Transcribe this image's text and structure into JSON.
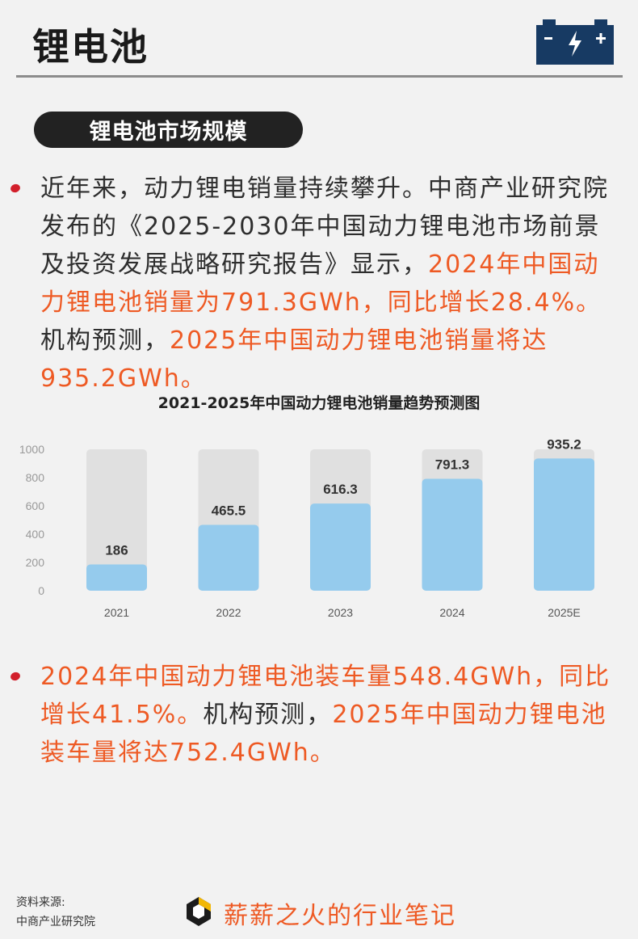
{
  "header": {
    "title": "锂电池",
    "icon": "battery-icon"
  },
  "section": {
    "title": "锂电池市场规模"
  },
  "paragraph1": {
    "t1": "近年来，动力锂电销量持续攀升。中商产业研究院发布的《2025-2030年中国动力锂电池市场前景及投资发展战略研究报告》显示，",
    "h1": "2024年中国动力锂电池销量为791.3GWh，同比增长28.4%。",
    "t2": "机构预测，",
    "h2": "2025年中国动力锂电池销量将达935.2GWh。"
  },
  "paragraph2": {
    "h1": "2024年中国动力锂电池装车量548.4GWh，同比增长41.5%。",
    "t1": "机构预测，",
    "h2": "2025年中国动力锂电池装车量将达752.4GWh。"
  },
  "footer": {
    "source_label": "资料来源:",
    "source_name": "中商产业研究院",
    "brand": "薪薪之火的行业笔记"
  },
  "colors": {
    "accent": "#ee5a24",
    "bar": "#95cbed",
    "bar_track": "#e0e0e0",
    "bullet": "#d21f2b"
  },
  "chart_data": {
    "type": "bar",
    "title": "2021-2025年中国动力锂电池销量趋势预测图",
    "categories": [
      "2021",
      "2022",
      "2023",
      "2024",
      "2025E"
    ],
    "values": [
      186,
      465.5,
      616.3,
      791.3,
      935.2
    ],
    "y_ticks": [
      0,
      200,
      400,
      600,
      800,
      1000
    ],
    "ylim": [
      0,
      1000
    ],
    "xlabel": "",
    "ylabel": "",
    "grid": false,
    "legend": "none"
  }
}
